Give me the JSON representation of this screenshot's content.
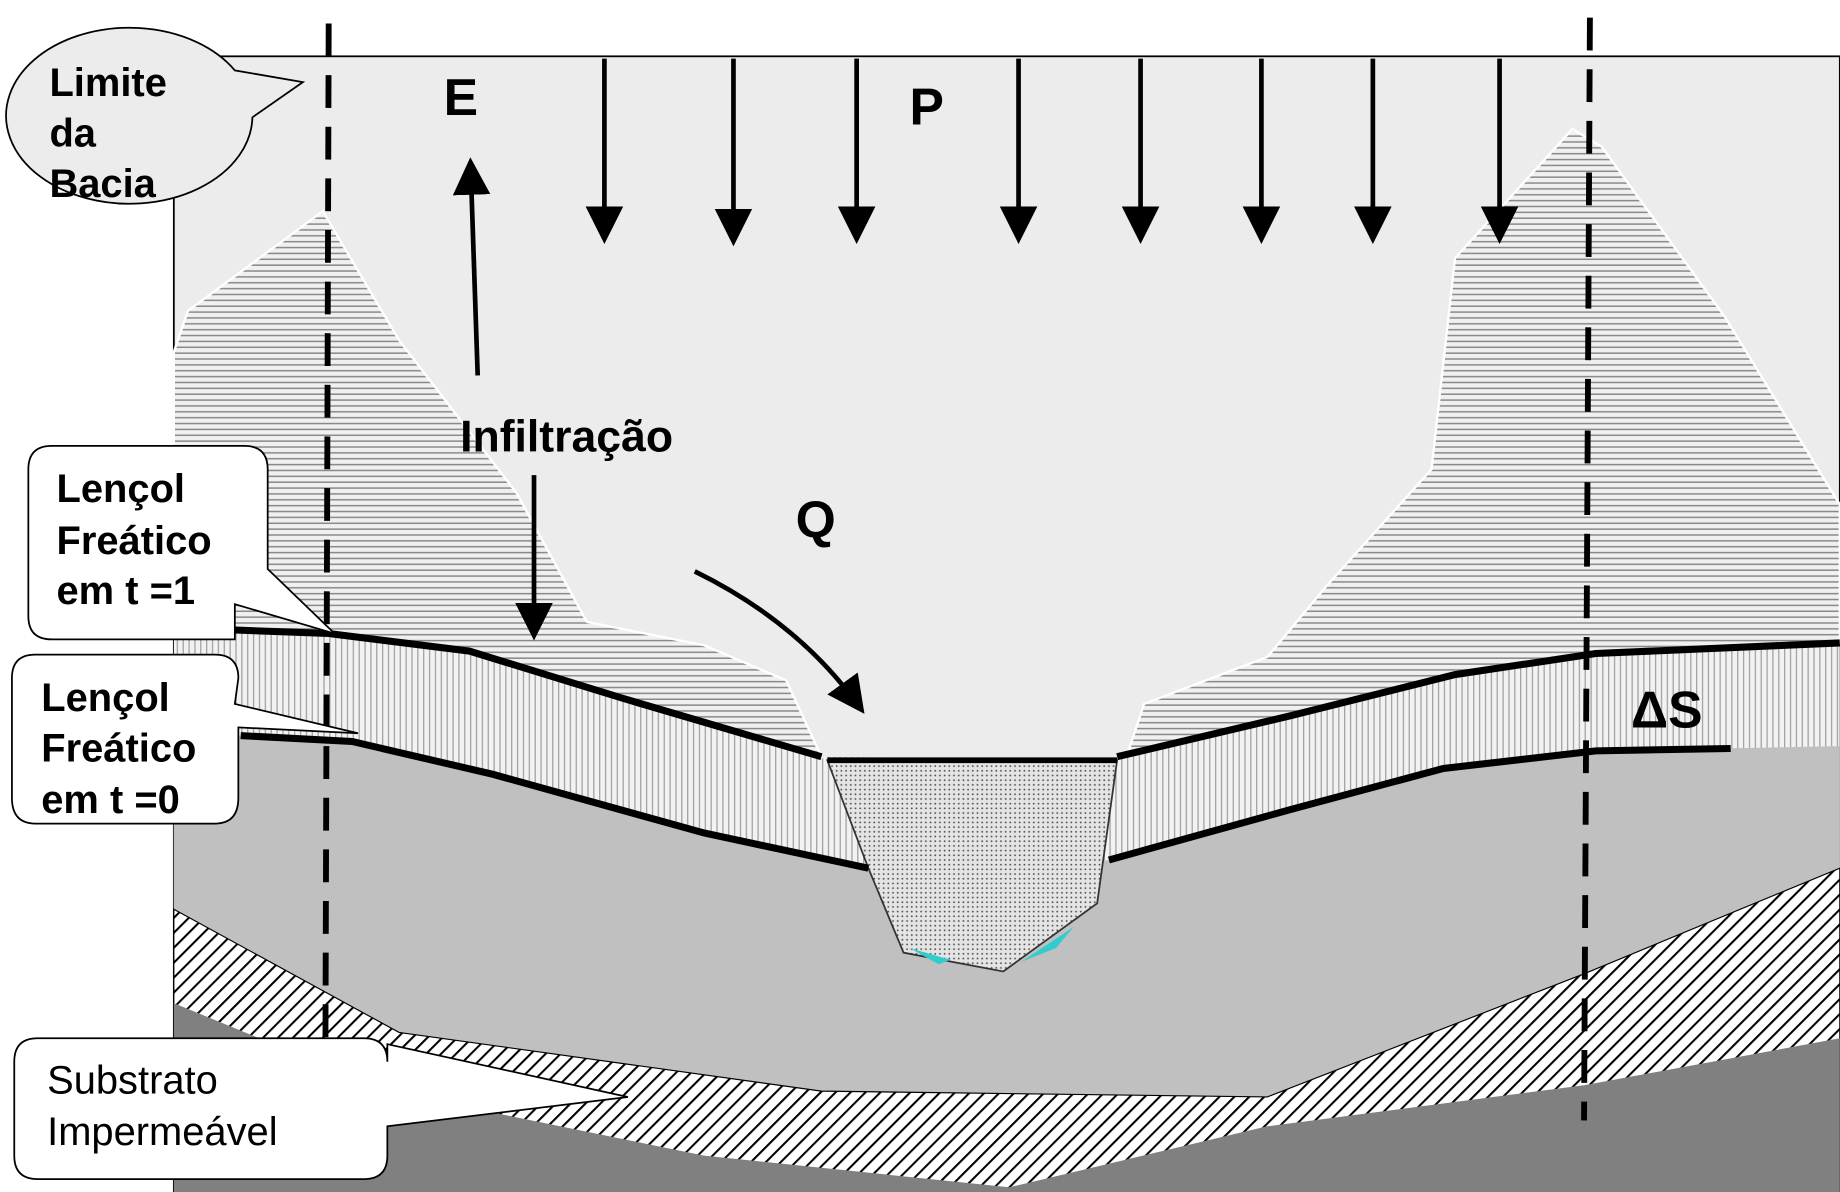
{
  "callouts": {
    "basin_limit": {
      "lines": [
        "Limite",
        "da",
        "Bacia"
      ]
    },
    "water_table_t1": {
      "lines": [
        "Lençol",
        "Freático",
        "em t =1"
      ]
    },
    "water_table_t0": {
      "lines": [
        "Lençol",
        "Freático",
        "em t =0"
      ]
    },
    "substrate": {
      "lines": [
        "Substrato",
        "Impermeável"
      ]
    }
  },
  "symbols": {
    "evaporation": "E",
    "precipitation": "P",
    "infiltration": "Infiltração",
    "runoff": "Q",
    "storage_change": "ΔS"
  }
}
